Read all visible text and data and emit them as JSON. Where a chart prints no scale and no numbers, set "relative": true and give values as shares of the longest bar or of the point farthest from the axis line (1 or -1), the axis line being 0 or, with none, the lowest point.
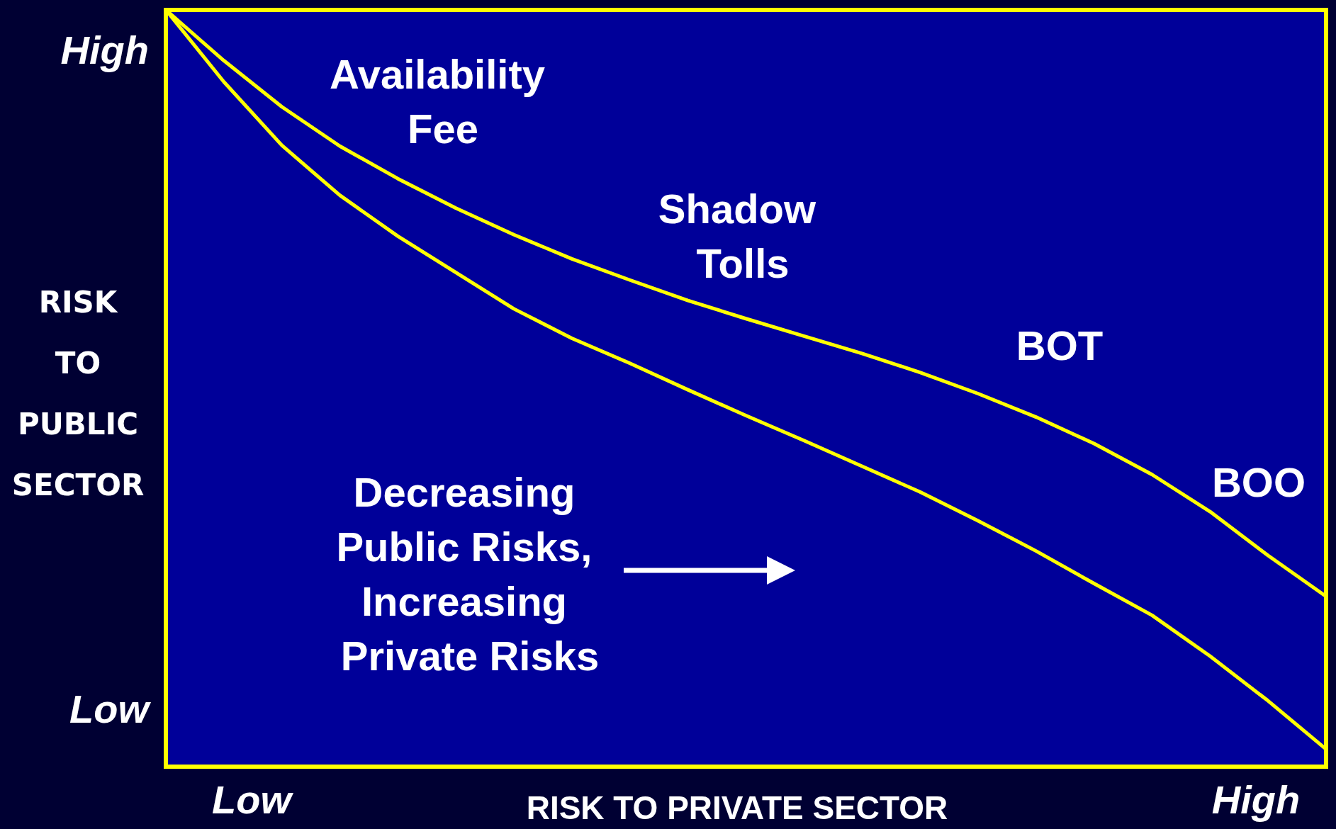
{
  "chart_data": {
    "type": "line",
    "relative": true,
    "xlabel": "RISK TO PRIVATE SECTOR",
    "ylabel": "RISK TO PUBLIC SECTOR",
    "marker": "none",
    "line_style": "solid",
    "categories": [
      null,
      null,
      null,
      null,
      null,
      null,
      null,
      null,
      null,
      null,
      null,
      null,
      null,
      null,
      null,
      null,
      null,
      null,
      null,
      null,
      null
    ],
    "series": [
      {
        "color": "#ffff00",
        "values": [
          1,
          0.933,
          0.872,
          0.82,
          0.777,
          0.738,
          0.703,
          0.671,
          0.643,
          0.616,
          0.592,
          0.569,
          0.546,
          0.521,
          0.493,
          0.462,
          0.427,
          0.386,
          0.337,
          0.279,
          0.225
        ]
      },
      {
        "color": "#ffff00",
        "values": [
          1,
          0.905,
          0.821,
          0.755,
          0.701,
          0.653,
          0.605,
          0.566,
          0.533,
          0.498,
          0.464,
          0.431,
          0.397,
          0.363,
          0.325,
          0.285,
          0.242,
          0.2,
          0.146,
          0.087,
          0.023
        ]
      }
    ],
    "annotations": [
      "High",
      "Low",
      "Low",
      "High",
      "Availability Fee",
      "Shadow Tolls",
      "BOT",
      "BOO",
      "Decreasing Public Risks, Increasing Private Risks"
    ]
  }
}
